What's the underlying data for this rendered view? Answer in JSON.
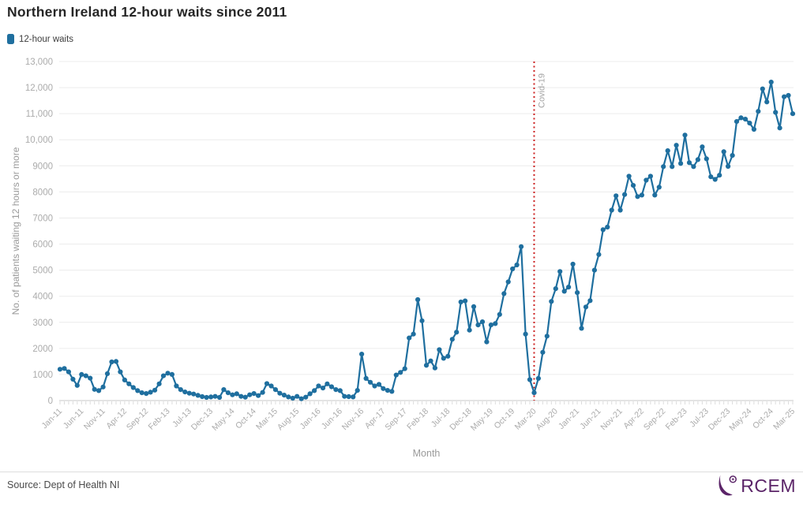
{
  "header": {
    "title": "Northern Ireland 12-hour waits since 2011"
  },
  "legend": {
    "items": [
      {
        "label": "12-hour waits",
        "color": "#1f6f9f"
      }
    ]
  },
  "chart_data": {
    "type": "line",
    "title": "Northern Ireland 12-hour waits since 2011",
    "xlabel": "Month",
    "ylabel": "No. of patients waiting 12 hours or more",
    "ylim": [
      0,
      13000
    ],
    "y_tick_step": 1000,
    "y_tick_labels": [
      "0",
      "1000",
      "2000",
      "3000",
      "4000",
      "5000",
      "6000",
      "7000",
      "8000",
      "9000",
      "10,000",
      "11,000",
      "12,000",
      "13,000"
    ],
    "x_start": "Jan-11",
    "x_end": "Mar-25",
    "frequency": "monthly",
    "x_tick_every": 5,
    "x_tick_labels": [
      "Jan-11",
      "Jun-11",
      "Nov-11",
      "Apr-12",
      "Sep-12",
      "Feb-13",
      "Jul-13",
      "Dec-13",
      "May-14",
      "Oct-14",
      "Mar-15",
      "Aug-15",
      "Jan-16",
      "Jun-16",
      "Nov-16",
      "Apr-17",
      "Sep-17",
      "Feb-18",
      "Jul-18",
      "Dec-18",
      "May-19",
      "Oct-19",
      "Mar-20",
      "Aug-20",
      "Jan-21",
      "Jun-21",
      "Nov-21",
      "Apr-22",
      "Sep-22",
      "Feb-23",
      "Jul-23",
      "Dec-23",
      "May-24",
      "Oct-24",
      "Mar-25"
    ],
    "grid": "horizontal",
    "legend_position": "top-left",
    "series": [
      {
        "name": "12-hour waits",
        "color": "#1f6f9f",
        "values": [
          1200,
          1230,
          1100,
          820,
          580,
          1000,
          950,
          860,
          430,
          380,
          520,
          1030,
          1480,
          1500,
          1100,
          790,
          640,
          500,
          380,
          300,
          270,
          320,
          400,
          640,
          950,
          1050,
          1000,
          560,
          420,
          330,
          280,
          250,
          200,
          150,
          120,
          140,
          160,
          120,
          420,
          300,
          220,
          260,
          160,
          130,
          220,
          270,
          190,
          310,
          650,
          560,
          420,
          280,
          210,
          140,
          90,
          160,
          70,
          130,
          260,
          380,
          560,
          480,
          640,
          530,
          420,
          380,
          160,
          150,
          140,
          390,
          1780,
          850,
          700,
          560,
          620,
          460,
          390,
          350,
          980,
          1080,
          1220,
          2400,
          2550,
          3870,
          3060,
          1350,
          1520,
          1250,
          1950,
          1620,
          1700,
          2350,
          2620,
          3780,
          3820,
          2700,
          3600,
          2900,
          3020,
          2250,
          2900,
          2950,
          3300,
          4100,
          4550,
          5050,
          5200,
          5900,
          2550,
          800,
          300,
          850,
          1850,
          2470,
          3800,
          4290,
          4950,
          4190,
          4350,
          5230,
          4140,
          2770,
          3590,
          3830,
          5000,
          5600,
          6550,
          6650,
          7300,
          7850,
          7300,
          7900,
          8600,
          8250,
          7820,
          7880,
          8450,
          8600,
          7880,
          8180,
          8970,
          9580,
          8970,
          9790,
          9090,
          10180,
          9120,
          8970,
          9240,
          9730,
          9270,
          8580,
          8480,
          8640,
          9540,
          8980,
          9400,
          10700,
          10840,
          10790,
          10640,
          10400,
          11090,
          11950,
          11450,
          12210,
          11050,
          10450,
          11650,
          11700,
          11000
        ]
      }
    ],
    "annotations": [
      {
        "type": "vline",
        "label": "Covid-19",
        "at_month": "Mar-20",
        "index": 110,
        "color": "#cc2222",
        "style": "dotted"
      }
    ],
    "colors": {
      "grid": "#ececec",
      "zero_line": "#c9c9c9",
      "tick_marks": "#dcdcdc",
      "axis_text": "#ababab",
      "axis_title": "#9a9a9a",
      "annotation_text": "#a5a5a5"
    }
  },
  "footer": {
    "source": "Source: Dept of Health NI",
    "logo_text": "RCEM",
    "logo_color": "#5b2468"
  }
}
